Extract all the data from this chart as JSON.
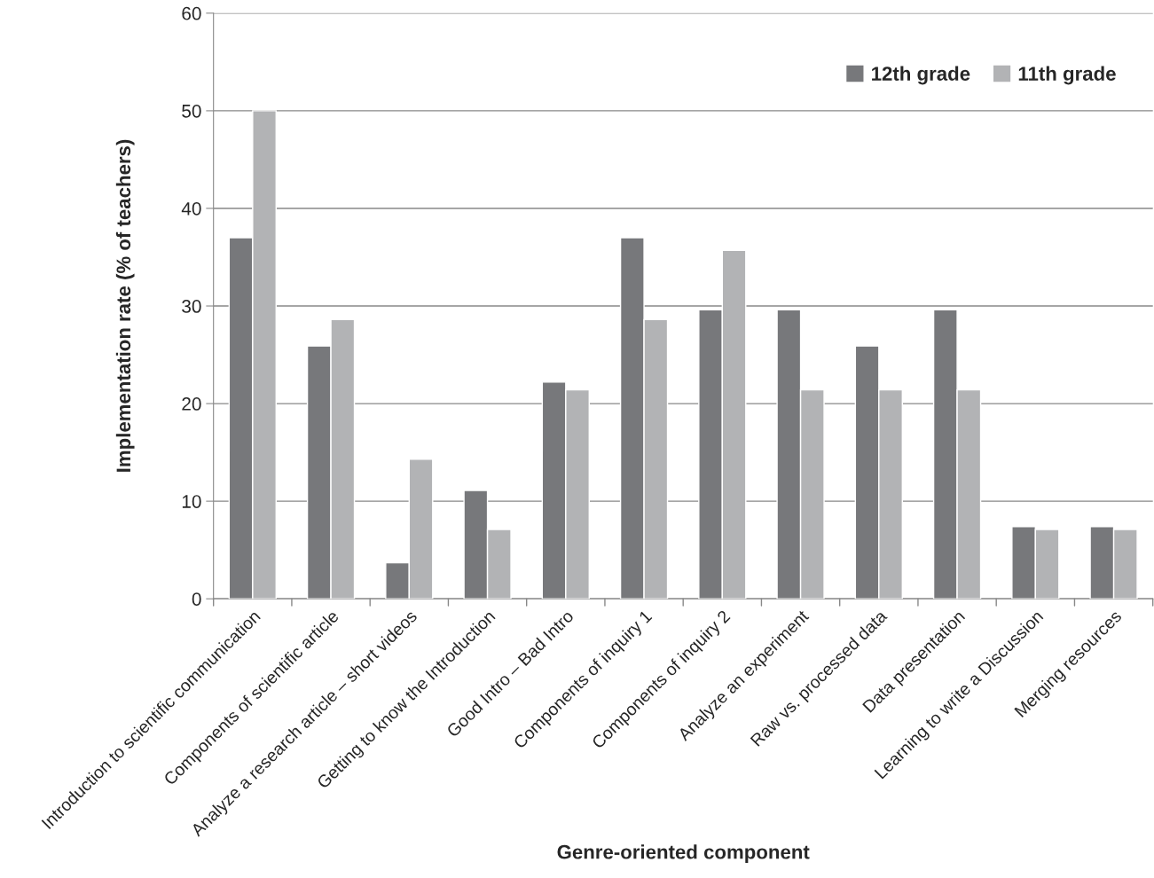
{
  "chart_data": {
    "type": "bar",
    "xlabel": "Genre-oriented component",
    "ylabel": "Implementation rate (% of teachers)",
    "categories": [
      "Introduction to scientific communication",
      "Components of scientific article",
      "Analyze a research article – short videos",
      "Getting to know the Introduction",
      "Good Intro – Bad Intro",
      "Components of inquiry 1",
      "Components of inquiry 2",
      "Analyze an experiment",
      "Raw vs. processed data",
      "Data presentation",
      "Learning to write a Discussion",
      "Merging resources"
    ],
    "series": [
      {
        "name": "12th grade",
        "color": "#77787b",
        "values": [
          37.0,
          25.9,
          3.7,
          11.1,
          22.2,
          37.0,
          29.6,
          29.6,
          25.9,
          29.6,
          7.4,
          7.4
        ]
      },
      {
        "name": "11th grade",
        "color": "#b2b3b5",
        "values": [
          50.0,
          28.6,
          14.3,
          7.1,
          21.4,
          28.6,
          35.7,
          21.4,
          21.4,
          21.4,
          7.1,
          7.1
        ]
      }
    ],
    "ylim": [
      0,
      60
    ],
    "yticks": [
      0,
      10,
      20,
      30,
      40,
      50,
      60
    ],
    "grid": "y",
    "legend": "top right"
  }
}
